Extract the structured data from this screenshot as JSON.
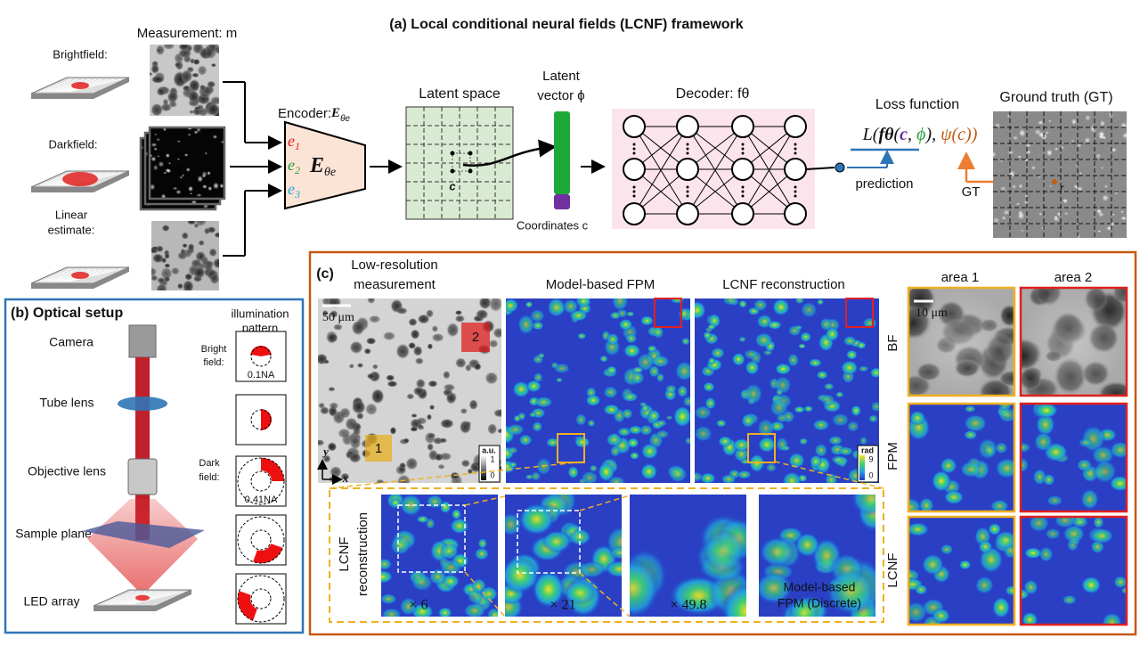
{
  "panel_a": {
    "title": "(a) Local conditional neural fields (LCNF) framework",
    "measurement": "Measurement: m",
    "brightfield": "Brightfield:",
    "darkfield": "Darkfield:",
    "linear_estimate": [
      "Linear",
      "estimate:"
    ],
    "encoder": {
      "label": "Encoder:",
      "symbol": "E",
      "subscript": "θe"
    },
    "encoder_block": {
      "symbol": "E",
      "subscript": "θe"
    },
    "channels": [
      {
        "symbol": "e",
        "index": "1",
        "color": "#e02020"
      },
      {
        "symbol": "e",
        "index": "2",
        "color": "#2a9d3a"
      },
      {
        "symbol": "e",
        "index": "3",
        "color": "#2aa7d6"
      }
    ],
    "latent_space": "Latent space",
    "latent_vector": [
      "Latent",
      "vector ϕ"
    ],
    "coordinates": "Coordinates c",
    "coordinate_marker": "c",
    "decoder": "Decoder: fθ",
    "loss_function": "Loss function",
    "loss_formula": [
      {
        "text": "L(",
        "color": "#111111"
      },
      {
        "text": "fθ",
        "color": "#111111"
      },
      {
        "text": "(",
        "color": "#111111"
      },
      {
        "text": "c",
        "color": "#7030a0"
      },
      {
        "text": ", ",
        "color": "#111111"
      },
      {
        "text": "ϕ",
        "color": "#2a9d3a"
      },
      {
        "text": "), ",
        "color": "#111111"
      },
      {
        "text": "ψ(c))",
        "color": "#c55a11"
      }
    ],
    "prediction": "prediction",
    "gt": "GT",
    "ground_truth": "Ground truth (GT)",
    "gt_marker": "r"
  },
  "panel_b": {
    "title": "(b) Optical setup",
    "components": [
      "Camera",
      "Tube lens",
      "Objective lens",
      "Sample plane",
      "LED array"
    ],
    "illumination_pattern": [
      "illumination",
      "pattern"
    ],
    "bright_field": [
      "Bright",
      "field:"
    ],
    "dark_field": [
      "Dark",
      "field:"
    ],
    "bright_na": "0.1NA",
    "dark_na": "0.41NA"
  },
  "panel_c": {
    "label": "(c)",
    "columns": [
      [
        "Low-resolution",
        "measurement"
      ],
      [
        "Model-based FPM"
      ],
      [
        "LCNF reconstruction"
      ]
    ],
    "areas": [
      "area 1",
      "area 2"
    ],
    "rows": [
      "BF",
      "FPM",
      "LCNF"
    ],
    "scale_bar_large": "50 μm",
    "scale_bar_small": "10 μm",
    "area_markers": [
      "1",
      "2"
    ],
    "axes": [
      "y",
      "x"
    ],
    "colorbar_bf": {
      "unit": "a.u.",
      "max": "1",
      "min": "0"
    },
    "colorbar_phase": {
      "unit": "rad",
      "max": "9",
      "min": "0"
    },
    "inset_label": [
      "LCNF",
      "reconstruction"
    ],
    "zooms": [
      "× 6",
      "× 21",
      "× 49.8"
    ],
    "discrete_label": [
      "Model-based",
      "FPM (Discrete)"
    ]
  }
}
